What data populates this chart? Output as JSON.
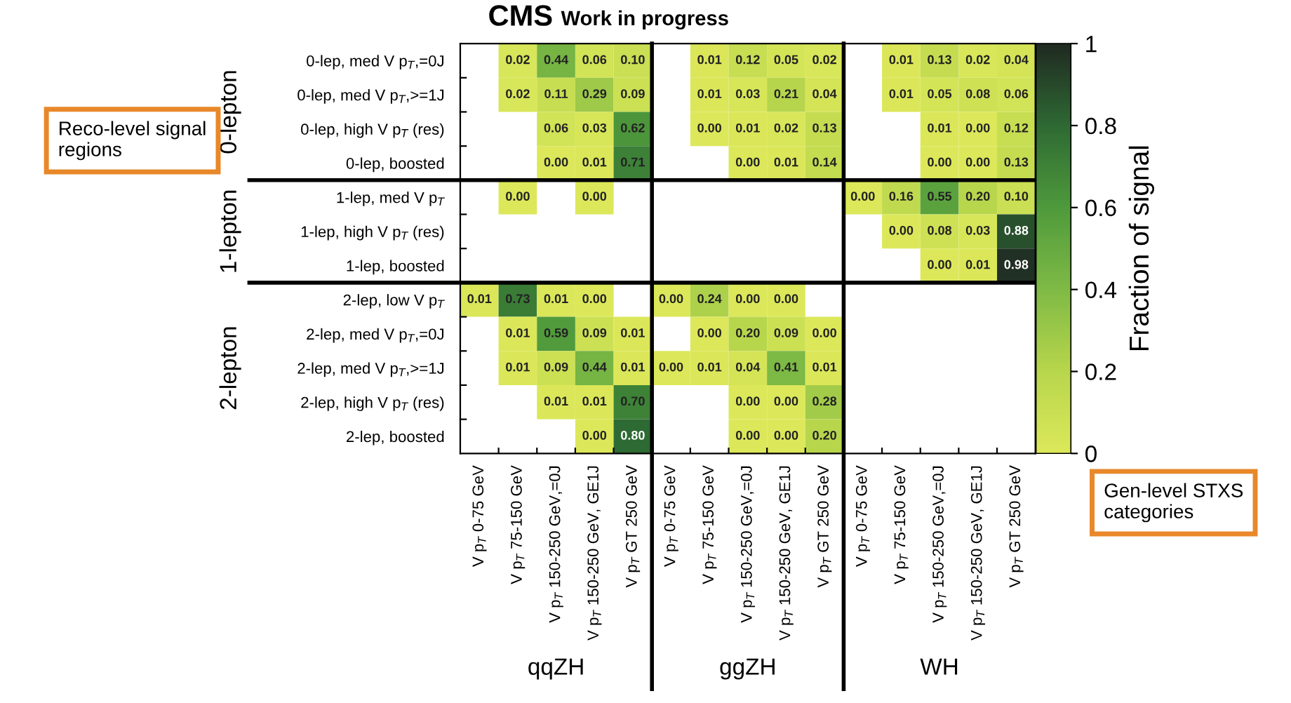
{
  "chart_data": {
    "type": "heatmap",
    "title": "CMS",
    "subtitle": "Work in progress",
    "clabel": "Fraction of signal",
    "categories": [
      "V p$_{T}$ 0-75 GeV",
      "V p$_{T}$ 75-150 GeV",
      "V p$_{T}$ 150-250 GeV,=0J",
      "V p$_{T}$ 150-250 GeV, GE1J",
      "V p$_{T}$ GT 250 GeV",
      "V p$_{T}$ 0-75 GeV",
      "V p$_{T}$ 75-150 GeV",
      "V p$_{T}$ 150-250 GeV,=0J",
      "V p$_{T}$ 150-250 GeV, GE1J",
      "V p$_{T}$ GT 250 GeV",
      "V p$_{T}$ 0-75 GeV",
      "V p$_{T}$ 75-150 GeV",
      "V p$_{T}$ 150-250 GeV,=0J",
      "V p$_{T}$ 150-250 GeV, GE1J",
      "V p$_{T}$ GT 250 GeV"
    ],
    "y_categories": [
      "0-lep, med V p$_{T}$,=0J",
      "0-lep, med V p$_{T}$,>=1J",
      "0-lep, high V p$_{T}$ (res)",
      "0-lep, boosted",
      "1-lep, med V p$_{T}$",
      "1-lep, high V p$_{T}$ (res)",
      "1-lep, boosted",
      "2-lep, low V p$_{T}$",
      "2-lep, med V p$_{T}$,=0J",
      "2-lep, med V p$_{T}$,>=1J",
      "2-lep, high V p$_{T}$ (res)",
      "2-lep, boosted"
    ],
    "cells": [
      [
        null,
        0.02,
        0.44,
        0.06,
        0.1,
        null,
        0.01,
        0.12,
        0.05,
        0.02,
        null,
        0.01,
        0.13,
        0.02,
        0.04
      ],
      [
        null,
        0.02,
        0.11,
        0.29,
        0.09,
        null,
        0.01,
        0.03,
        0.21,
        0.04,
        null,
        0.01,
        0.05,
        0.08,
        0.06
      ],
      [
        null,
        null,
        0.06,
        0.03,
        0.62,
        null,
        0.0,
        0.01,
        0.02,
        0.13,
        null,
        null,
        0.01,
        0.0,
        0.12
      ],
      [
        null,
        null,
        0.0,
        0.01,
        0.71,
        null,
        null,
        0.0,
        0.01,
        0.14,
        null,
        null,
        0.0,
        0.0,
        0.13
      ],
      [
        null,
        0.0,
        null,
        0.0,
        null,
        null,
        null,
        null,
        null,
        null,
        0.0,
        0.16,
        0.55,
        0.2,
        0.1
      ],
      [
        null,
        null,
        null,
        null,
        null,
        null,
        null,
        null,
        null,
        null,
        null,
        0.0,
        0.08,
        0.03,
        0.88
      ],
      [
        null,
        null,
        null,
        null,
        null,
        null,
        null,
        null,
        null,
        null,
        null,
        null,
        0.0,
        0.01,
        0.98
      ],
      [
        0.01,
        0.73,
        0.01,
        0.0,
        null,
        0.0,
        0.24,
        0.0,
        0.0,
        null,
        null,
        null,
        null,
        null,
        null
      ],
      [
        null,
        0.01,
        0.59,
        0.09,
        0.01,
        null,
        0.0,
        0.2,
        0.09,
        0.0,
        null,
        null,
        null,
        null,
        null
      ],
      [
        null,
        0.01,
        0.09,
        0.44,
        0.01,
        0.0,
        0.01,
        0.04,
        0.41,
        0.01,
        null,
        null,
        null,
        null,
        null
      ],
      [
        null,
        null,
        0.01,
        0.01,
        0.7,
        null,
        null,
        0.0,
        0.0,
        0.28,
        null,
        null,
        null,
        null,
        null
      ],
      [
        null,
        null,
        null,
        0.0,
        0.8,
        null,
        null,
        0.0,
        0.0,
        0.2,
        null,
        null,
        null,
        null,
        null
      ]
    ],
    "cell_labels": [
      [
        null,
        "0.02",
        "0.44",
        "0.06",
        "0.10",
        null,
        "0.01",
        "0.12",
        "0.05",
        "0.02",
        null,
        "0.01",
        "0.13",
        "0.02",
        "0.04"
      ],
      [
        null,
        "0.02",
        "0.11",
        "0.29",
        "0.09",
        null,
        "0.01",
        "0.03",
        "0.21",
        "0.04",
        null,
        "0.01",
        "0.05",
        "0.08",
        "0.06"
      ],
      [
        null,
        null,
        "0.06",
        "0.03",
        "0.62",
        null,
        "0.00",
        "0.01",
        "0.02",
        "0.13",
        null,
        null,
        "0.01",
        "0.00",
        "0.12"
      ],
      [
        null,
        null,
        "0.00",
        "0.01",
        "0.71",
        null,
        null,
        "0.00",
        "0.01",
        "0.14",
        null,
        null,
        "0.00",
        "0.00",
        "0.13"
      ],
      [
        null,
        "0.00",
        null,
        "0.00",
        null,
        null,
        null,
        null,
        null,
        null,
        "0.00",
        "0.16",
        "0.55",
        "0.20",
        "0.10"
      ],
      [
        null,
        null,
        null,
        null,
        null,
        null,
        null,
        null,
        null,
        null,
        null,
        "0.00",
        "0.08",
        "0.03",
        "0.88"
      ],
      [
        null,
        null,
        null,
        null,
        null,
        null,
        null,
        null,
        null,
        null,
        null,
        null,
        "0.00",
        "0.01",
        "0.98"
      ],
      [
        "0.01",
        "0.73",
        "0.01",
        "0.00",
        null,
        "0.00",
        "0.24",
        "0.00",
        "0.00",
        null,
        null,
        null,
        null,
        null,
        null
      ],
      [
        null,
        "0.01",
        "0.59",
        "0.09",
        "0.01",
        null,
        "0.00",
        "0.20",
        "0.09",
        "0.00",
        null,
        null,
        null,
        null,
        null
      ],
      [
        null,
        "0.01",
        "0.09",
        "0.44",
        "0.01",
        "0.00",
        "0.01",
        "0.04",
        "0.41",
        "0.01",
        null,
        null,
        null,
        null,
        null
      ],
      [
        null,
        null,
        "0.01",
        "0.01",
        "0.70",
        null,
        null,
        "0.00",
        "0.00",
        "0.28",
        null,
        null,
        null,
        null,
        null
      ],
      [
        null,
        null,
        null,
        "0.00",
        "0.80",
        null,
        null,
        "0.00",
        "0.00",
        "0.20",
        null,
        null,
        null,
        null,
        null
      ]
    ],
    "clim": [
      0,
      1
    ],
    "cticks": [
      0,
      0.2,
      0.4,
      0.6,
      0.8,
      1
    ],
    "annotations": [
      "Reco-level signal regions",
      "Gen-level STXS categories",
      "0-lepton",
      "1-lepton",
      "2-lepton",
      "qqZH",
      "ggZH",
      "WH"
    ]
  }
}
